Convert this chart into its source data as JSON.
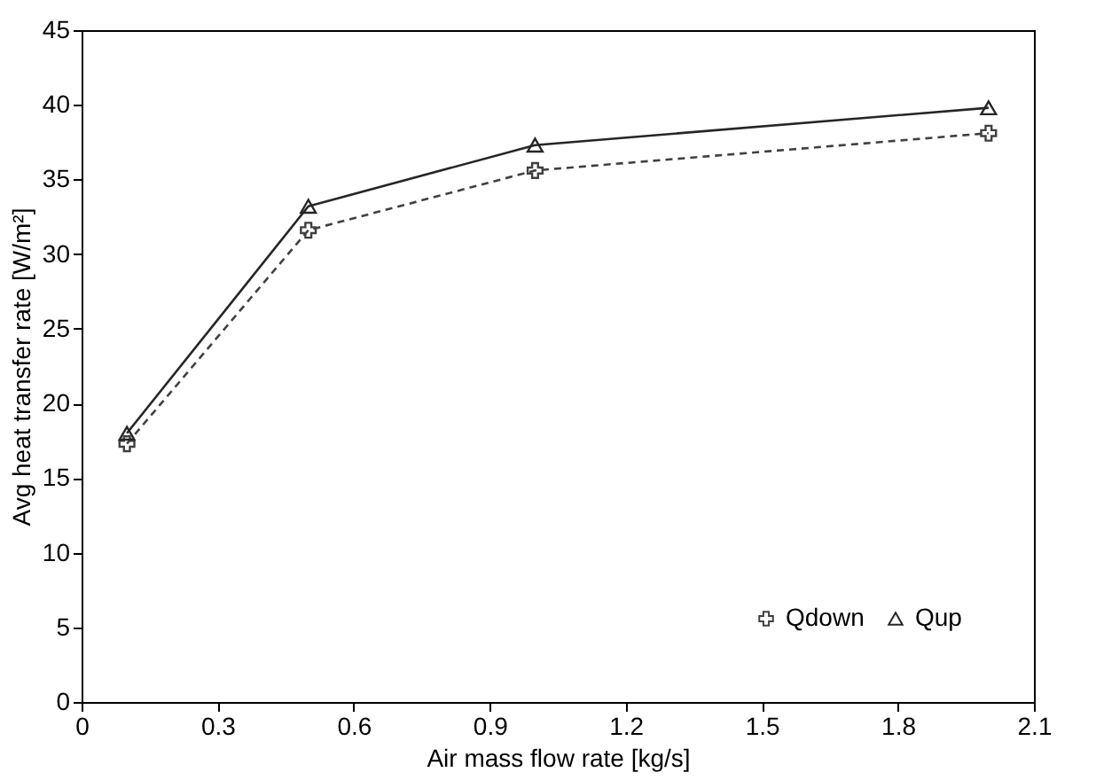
{
  "chart_data": {
    "type": "line",
    "xlabel": "Air mass flow rate [kg/s]",
    "ylabel": "Avg heat transfer rate [W/m²]",
    "x": [
      0.1,
      0.5,
      1.0,
      2.0
    ],
    "series": [
      {
        "name": "Qdown",
        "color": "#404040",
        "values": [
          17.3,
          31.6,
          35.6,
          38.1
        ],
        "marker": "cross",
        "line_style": "dashed"
      },
      {
        "name": "Qup",
        "color": "#262626",
        "values": [
          18.0,
          33.2,
          37.3,
          39.8
        ],
        "marker": "triangle",
        "line_style": "solid"
      }
    ],
    "xlim": [
      0,
      2.1
    ],
    "xticks": [
      0,
      0.3,
      0.6,
      0.9,
      1.2,
      1.5,
      1.8,
      2.1
    ],
    "ylim": [
      0,
      45
    ],
    "yticks": [
      0,
      5,
      10,
      15,
      20,
      25,
      30,
      35,
      40,
      45
    ],
    "grid": false,
    "legend": "bottom right"
  }
}
